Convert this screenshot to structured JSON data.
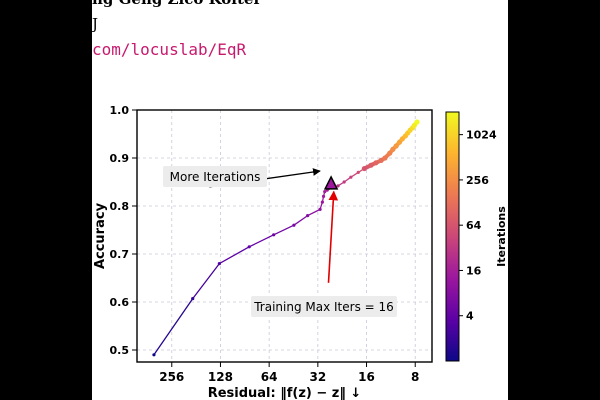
{
  "header": {
    "authors_fragment": "ng Geng   Zico Kolter",
    "affiliation_fragment": "J",
    "link_fragment": "com/locuslab/EqR"
  },
  "chart_data": {
    "type": "scatter",
    "xlabel": "Residual: ‖f(z) − z‖ ↓",
    "ylabel": "Accuracy",
    "x_scale": "log2",
    "x_reversed": true,
    "xlim": [
      420,
      6.3
    ],
    "ylim": [
      0.475,
      1.0
    ],
    "x_ticks": [
      256,
      128,
      64,
      32,
      16,
      8
    ],
    "x_tick_labels": [
      "256",
      "128",
      "64",
      "32",
      "16",
      "8"
    ],
    "y_ticks": [
      0.5,
      0.6,
      0.7,
      0.8,
      0.9,
      1.0
    ],
    "y_tick_labels": [
      "0.5",
      "0.6",
      "0.7",
      "0.8",
      "0.9",
      "1.0"
    ],
    "grid": true,
    "colorbar": {
      "label": "Iterations",
      "scale": "log2",
      "range": [
        1,
        2048
      ],
      "ticks": [
        4,
        16,
        64,
        256,
        1024
      ],
      "tick_labels": [
        "4",
        "16",
        "64",
        "256",
        "1024"
      ],
      "colormap": [
        "#0d0887",
        "#5c01a6",
        "#9c179e",
        "#cc4778",
        "#ed7953",
        "#fdb42f",
        "#f0f921"
      ]
    },
    "series": [
      {
        "x": [
          330,
          190,
          130,
          85,
          60,
          45,
          37,
          31,
          30,
          29.5,
          29,
          28,
          26,
          24,
          22,
          20,
          18,
          16.5,
          15,
          14,
          13,
          12.3,
          11.5,
          11,
          10.5,
          10,
          9.6,
          9.2,
          8.9,
          8.6,
          8.3,
          8.1,
          7.8
        ],
        "y": [
          0.49,
          0.607,
          0.68,
          0.715,
          0.74,
          0.76,
          0.78,
          0.793,
          0.808,
          0.82,
          0.83,
          0.833,
          0.838,
          0.842,
          0.85,
          0.86,
          0.87,
          0.878,
          0.885,
          0.89,
          0.895,
          0.9,
          0.91,
          0.918,
          0.925,
          0.933,
          0.94,
          0.946,
          0.952,
          0.958,
          0.963,
          0.968,
          0.975
        ],
        "iterations": [
          1,
          2,
          3,
          4,
          5,
          6,
          8,
          10,
          12,
          14,
          15,
          16,
          20,
          25,
          32,
          40,
          50,
          64,
          80,
          100,
          128,
          160,
          200,
          256,
          320,
          400,
          512,
          640,
          800,
          1024,
          1280,
          1600,
          2048
        ]
      }
    ],
    "highlight": {
      "x": 26.5,
      "y": 0.846,
      "marker": "triangle"
    },
    "annotations": [
      {
        "text": "More Iterations",
        "arrow_from": [
          150,
          0.84
        ],
        "arrow_to": [
          31,
          0.873
        ]
      },
      {
        "text": "Training Max Iters = 16",
        "arrow_from": [
          27.5,
          0.64
        ],
        "arrow_to": [
          25.5,
          0.83
        ]
      }
    ]
  }
}
